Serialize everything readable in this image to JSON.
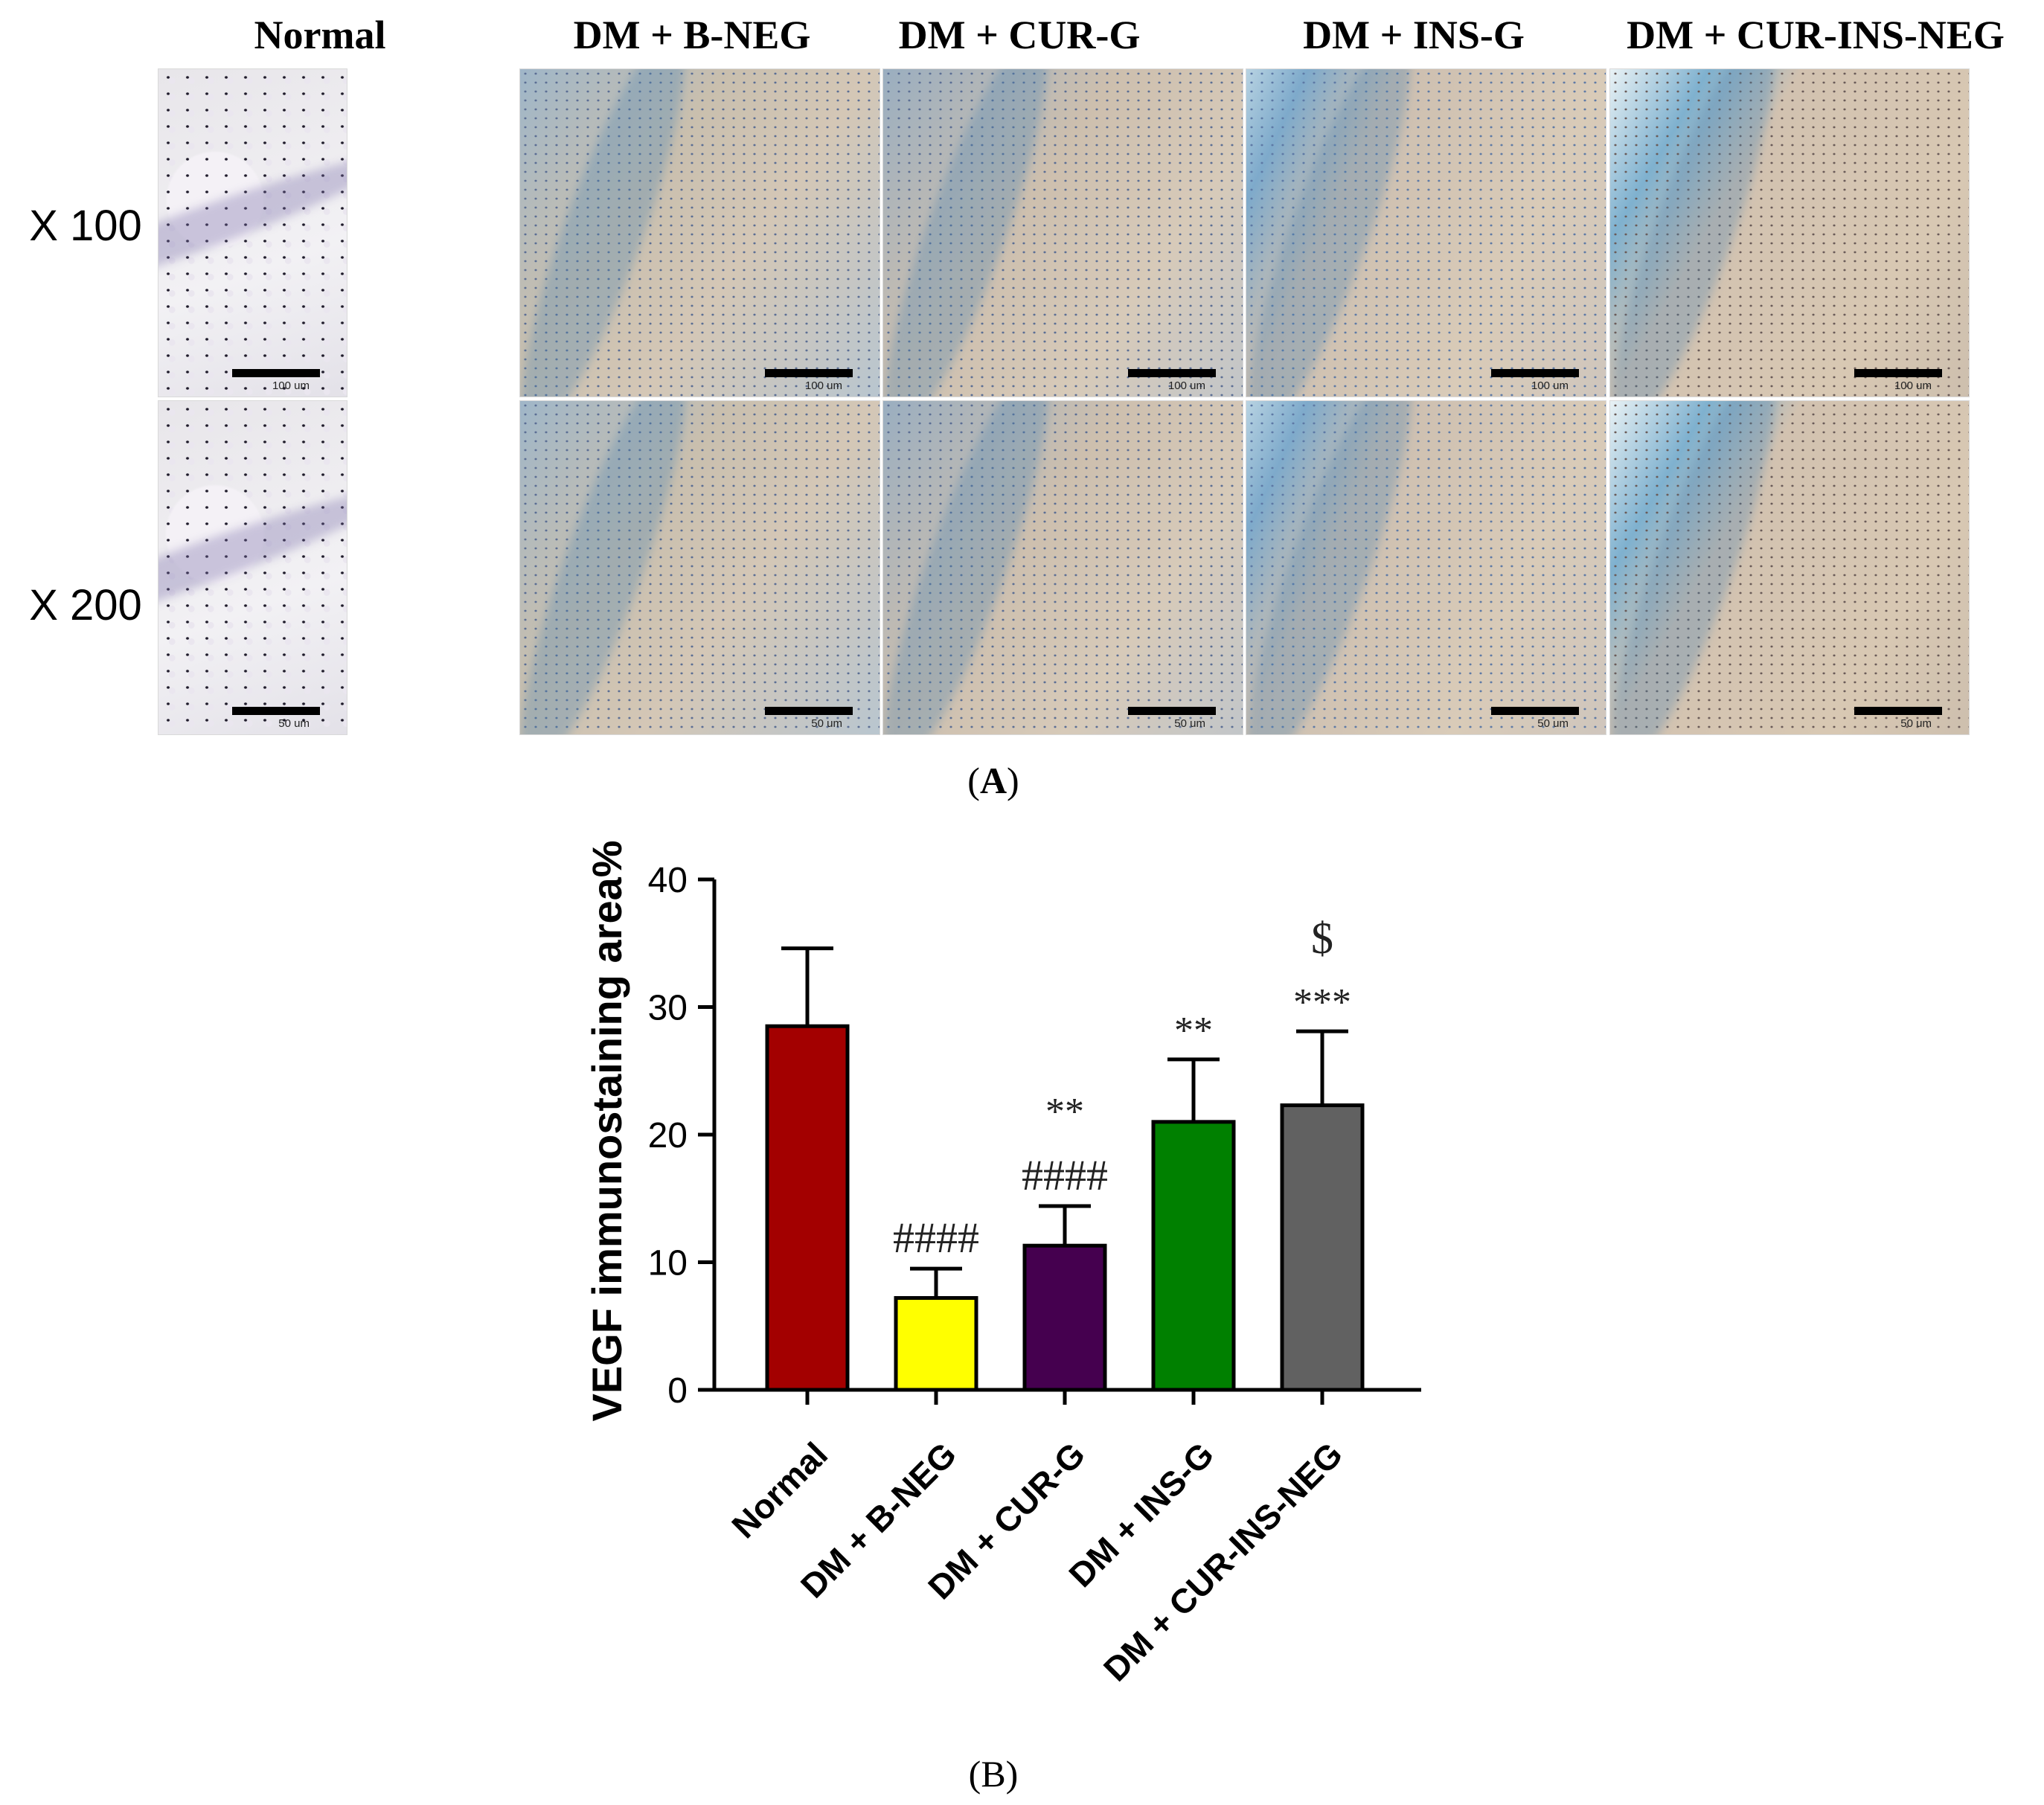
{
  "panel_a": {
    "column_headers": [
      "Normal",
      "DM + B-NEG",
      "DM + CUR-G",
      "DM + INS-G",
      "DM + CUR-INS-NEG"
    ],
    "row_labels": [
      "X 100",
      "X 200"
    ],
    "scale_labels": [
      "100 um",
      "50 um"
    ],
    "image_kind": "VEGF immunohistochemistry skin micrographs (blue/brown stain)"
  },
  "panel_labels": {
    "a": "A",
    "b": "B"
  },
  "chart_data": {
    "type": "bar",
    "categories": [
      "Normal",
      "DM + B-NEG",
      "DM + CUR-G",
      "DM + INS-G",
      "DM + CUR-INS-NEG"
    ],
    "values": [
      28.5,
      7.2,
      11.3,
      21.0,
      22.3
    ],
    "errors": [
      6.1,
      2.3,
      3.1,
      4.9,
      5.8
    ],
    "annotations": [
      [
        "",
        ""
      ],
      [
        "",
        "####"
      ],
      [
        "**",
        "####"
      ],
      [
        "",
        "**"
      ],
      [
        "$",
        "***"
      ]
    ],
    "colors": [
      "#a30000",
      "#ffff00",
      "#45004f",
      "#008000",
      "#616161"
    ],
    "ylabel": "VEGF immunostaining area%",
    "xlabel": "",
    "ylim": [
      0,
      40
    ],
    "yticks": [
      0,
      10,
      20,
      30,
      40
    ],
    "grid": false,
    "legend": "none"
  }
}
